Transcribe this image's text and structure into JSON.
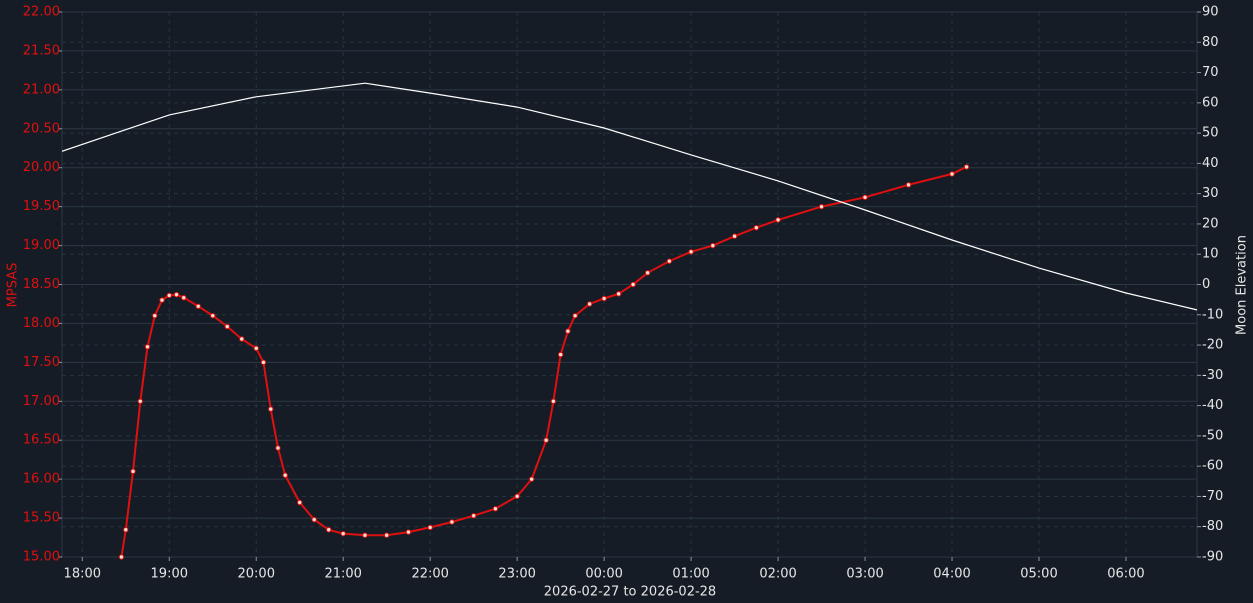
{
  "chart_data": {
    "type": "line",
    "xlabel": "2026-02-27 to 2026-02-28",
    "ylabel": "MPSAS",
    "y2label": "Moon Elevation",
    "xlim": [
      "17:46",
      "06:49"
    ],
    "xticks": [
      "18:00",
      "19:00",
      "20:00",
      "21:00",
      "22:00",
      "23:00",
      "00:00",
      "01:00",
      "02:00",
      "03:00",
      "04:00",
      "05:00",
      "06:00"
    ],
    "ylim": [
      15,
      22
    ],
    "yticks": [
      {
        "value": 15,
        "label": "15.00"
      },
      {
        "value": 15.5,
        "label": "15.50"
      },
      {
        "value": 16,
        "label": "16.00"
      },
      {
        "value": 16.5,
        "label": "16.50"
      },
      {
        "value": 17,
        "label": "17.00"
      },
      {
        "value": 17.5,
        "label": "17.50"
      },
      {
        "value": 18,
        "label": "18.00"
      },
      {
        "value": 18.5,
        "label": "18.50"
      },
      {
        "value": 19,
        "label": "19.00"
      },
      {
        "value": 19.5,
        "label": "19.50"
      },
      {
        "value": 20,
        "label": "20.00"
      },
      {
        "value": 20.5,
        "label": "20.50"
      },
      {
        "value": 21,
        "label": "21.00"
      },
      {
        "value": 21.5,
        "label": "21.50"
      },
      {
        "value": 22,
        "label": "22.00"
      }
    ],
    "y2lim": [
      -90,
      90
    ],
    "y2ticks": [
      -90,
      -80,
      -70,
      -60,
      -50,
      -40,
      -30,
      -20,
      -10,
      0,
      10,
      20,
      30,
      40,
      50,
      60,
      70,
      80,
      90
    ],
    "grid": true,
    "series": [
      {
        "color": "#e01010",
        "markers": true,
        "x": [
          "18:27",
          "18:30",
          "18:35",
          "18:40",
          "18:45",
          "18:50",
          "18:55",
          "19:00",
          "19:05",
          "19:10",
          "19:20",
          "19:30",
          "19:40",
          "19:50",
          "20:00",
          "20:05",
          "20:10",
          "20:15",
          "20:20",
          "20:30",
          "20:40",
          "20:50",
          "21:00",
          "21:15",
          "21:30",
          "21:45",
          "22:00",
          "22:15",
          "22:30",
          "22:45",
          "23:00",
          "23:10",
          "23:20",
          "23:25",
          "23:30",
          "23:35",
          "23:40",
          "23:50",
          "00:00",
          "00:10",
          "00:20",
          "00:30",
          "00:45",
          "01:00",
          "01:15",
          "01:30",
          "01:45",
          "02:00",
          "02:30",
          "03:00",
          "03:30",
          "04:00",
          "04:10"
        ],
        "values": [
          15.0,
          15.35,
          16.1,
          17.0,
          17.7,
          18.1,
          18.3,
          18.36,
          18.37,
          18.33,
          18.22,
          18.1,
          17.96,
          17.8,
          17.68,
          17.5,
          16.9,
          16.4,
          16.05,
          15.7,
          15.48,
          15.35,
          15.3,
          15.28,
          15.28,
          15.32,
          15.38,
          15.45,
          15.53,
          15.62,
          15.78,
          16.0,
          16.5,
          17.0,
          17.6,
          17.9,
          18.1,
          18.25,
          18.32,
          18.38,
          18.5,
          18.65,
          18.8,
          18.92,
          19.0,
          19.12,
          19.23,
          19.33,
          19.5,
          19.62,
          19.78,
          19.92,
          20.01
        ]
      },
      {
        "color": "#ffffff",
        "axis": "y2",
        "markers": false,
        "x": [
          "17:46",
          "19:00",
          "20:00",
          "21:15",
          "22:00",
          "23:00",
          "00:00",
          "01:00",
          "02:00",
          "03:00",
          "04:00",
          "05:00",
          "06:00",
          "06:49"
        ],
        "values": [
          44,
          56,
          62,
          66.5,
          63.2,
          58.6,
          51.7,
          42.8,
          34.2,
          24.6,
          14.7,
          5.4,
          -2.8,
          -8.4
        ]
      }
    ]
  }
}
